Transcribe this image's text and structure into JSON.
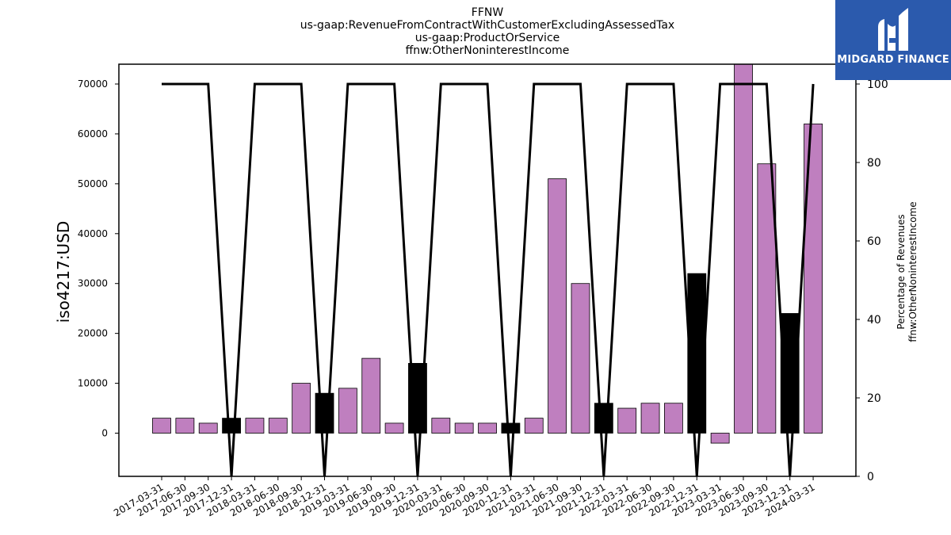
{
  "chart_data": {
    "type": "bar",
    "title_lines": [
      "FFNW",
      "us-gaap:RevenueFromContractWithCustomerExcludingAssessedTax",
      "us-gaap:ProductOrService",
      "ffnw:OtherNoninterestIncome"
    ],
    "ylabel": "iso4217:USD",
    "ylabel_right_lines": [
      "Percentage of Revenues",
      "ffnw:OtherNoninterestIncome"
    ],
    "ylim": [
      -8800,
      74000
    ],
    "ylim_right": [
      0,
      100
    ],
    "yticks": [
      0,
      10000,
      20000,
      30000,
      40000,
      50000,
      60000,
      70000
    ],
    "yticks_right": [
      0,
      20,
      40,
      60,
      80,
      100
    ],
    "categories": [
      "2017-03-31",
      "2017-06-30",
      "2017-09-30",
      "2017-12-31",
      "2018-03-31",
      "2018-06-30",
      "2018-09-30",
      "2018-12-31",
      "2019-03-31",
      "2019-06-30",
      "2019-09-30",
      "2019-12-31",
      "2020-03-31",
      "2020-06-30",
      "2020-09-30",
      "2020-12-31",
      "2021-03-31",
      "2021-06-30",
      "2021-09-30",
      "2021-12-31",
      "2022-03-31",
      "2022-06-30",
      "2022-09-30",
      "2022-12-31",
      "2023-03-31",
      "2023-06-30",
      "2023-09-30",
      "2023-12-31",
      "2024-03-31"
    ],
    "series": [
      {
        "type": "bar",
        "values": [
          3000,
          3000,
          2000,
          3000,
          3000,
          3000,
          10000,
          8000,
          9000,
          15000,
          2000,
          14000,
          3000,
          2000,
          2000,
          2000,
          3000,
          51000,
          30000,
          6000,
          5000,
          6000,
          6000,
          32000,
          -2000,
          75000,
          54000,
          24000,
          62000
        ],
        "highlight": [
          false,
          false,
          false,
          true,
          false,
          false,
          false,
          true,
          false,
          false,
          false,
          true,
          false,
          false,
          false,
          true,
          false,
          false,
          false,
          true,
          false,
          false,
          false,
          true,
          false,
          false,
          false,
          true,
          false
        ]
      },
      {
        "type": "line",
        "axis": "right",
        "values": [
          100,
          100,
          100,
          0,
          100,
          100,
          100,
          0,
          100,
          100,
          100,
          0,
          100,
          100,
          100,
          0,
          100,
          100,
          100,
          0,
          100,
          100,
          100,
          0,
          100,
          100,
          100,
          0,
          100
        ]
      }
    ],
    "colors": {
      "bar": "#bf7fbf",
      "highlight": "#000000",
      "line": "#000000"
    },
    "grid": false
  },
  "logo": {
    "text": "MIDGARD FINANCE",
    "background": "#2b5aad"
  }
}
